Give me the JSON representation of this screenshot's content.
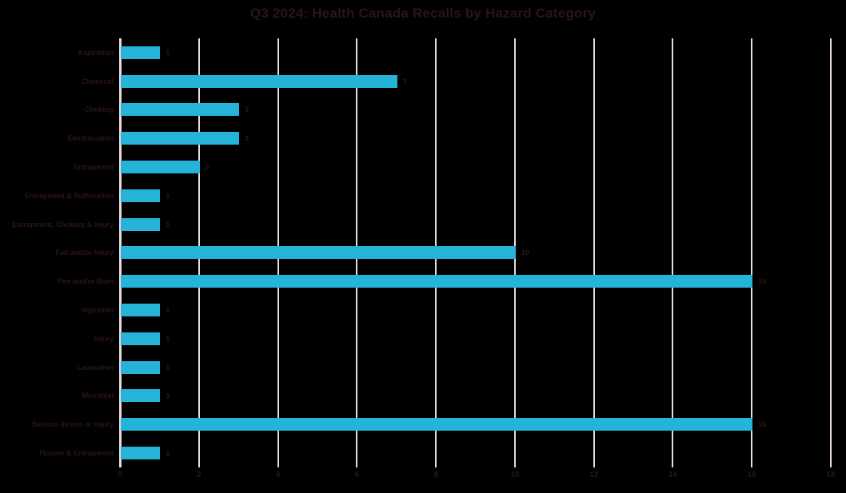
{
  "title": "Q3 2024: Health Canada Recalls by Hazard Category",
  "colors": {
    "background": "#000000",
    "bar": "#25b3d7",
    "gridline": "#ead9df",
    "text": "#2a151b"
  },
  "chart_data": {
    "type": "bar",
    "orientation": "horizontal",
    "title": "Q3 2024: Health Canada Recalls by Hazard Category",
    "categories": [
      "Aspiration",
      "Chemical",
      "Choking",
      "Electrocution",
      "Entrapment",
      "Entrapment & Suffocation",
      "Entrapment, Choking & Injury",
      "Fall and/or Injury",
      "Fire and/or Burn",
      "Ingestion",
      "Injury",
      "Laceration",
      "Microbial",
      "Serious Illness or Injury",
      "Tipover & Entrapment"
    ],
    "values": [
      1,
      7,
      3,
      3,
      2,
      1,
      1,
      10,
      16,
      1,
      1,
      1,
      1,
      16,
      1
    ],
    "data_labels": [
      "1",
      "7",
      "3",
      "3",
      "2",
      "1",
      "1",
      "10",
      "16",
      "1",
      "1",
      "1",
      "1",
      "16",
      "1"
    ],
    "xlabel": "",
    "ylabel": "",
    "xlim": [
      0,
      18
    ],
    "x_ticks": [
      0,
      2,
      4,
      6,
      8,
      10,
      12,
      14,
      16,
      18
    ],
    "grid": "vertical-only",
    "legend": "none"
  }
}
